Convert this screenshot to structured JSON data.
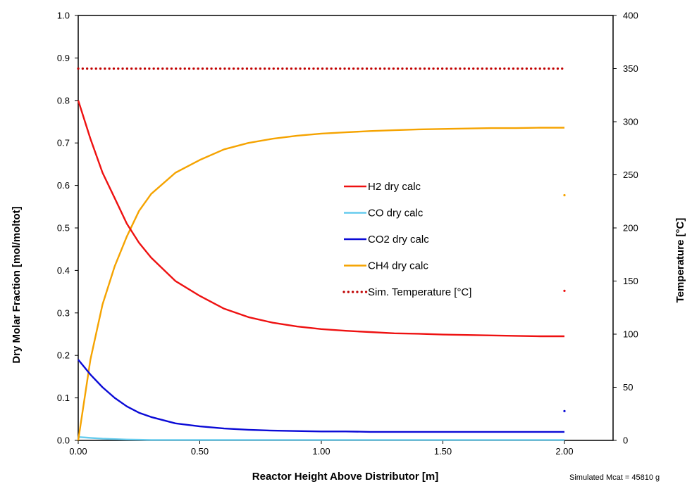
{
  "chart_data": {
    "type": "line",
    "xlabel": "Reactor Height Above Distributor [m]",
    "ylabel": "Dry Molar Fraction [mol/moltot]",
    "y2label": "Temperature [°C]",
    "xlim": [
      0,
      2.2
    ],
    "ylim": [
      0,
      1.0
    ],
    "y2lim": [
      0,
      400
    ],
    "xticks": [
      "0.00",
      "0.50",
      "1.00",
      "1.50",
      "2.00"
    ],
    "xtick_values": [
      0,
      0.5,
      1.0,
      1.5,
      2.0
    ],
    "yticks": [
      "0.0",
      "0.1",
      "0.2",
      "0.3",
      "0.4",
      "0.5",
      "0.6",
      "0.7",
      "0.8",
      "0.9",
      "1.0"
    ],
    "ytick_values": [
      0,
      0.1,
      0.2,
      0.3,
      0.4,
      0.5,
      0.6,
      0.7,
      0.8,
      0.9,
      1.0
    ],
    "y2ticks": [
      "0",
      "50",
      "100",
      "150",
      "200",
      "250",
      "300",
      "350",
      "400"
    ],
    "y2tick_values": [
      0,
      50,
      100,
      150,
      200,
      250,
      300,
      350,
      400
    ],
    "grid": false,
    "legend_position": "center",
    "x": [
      0,
      0.05,
      0.1,
      0.15,
      0.2,
      0.25,
      0.3,
      0.4,
      0.5,
      0.6,
      0.7,
      0.8,
      0.9,
      1.0,
      1.1,
      1.2,
      1.3,
      1.4,
      1.5,
      1.6,
      1.7,
      1.8,
      1.9,
      2.0
    ],
    "series": [
      {
        "name": "H2 dry calc",
        "color": "#ee1111",
        "style": "solid",
        "axis": "left",
        "values": [
          0.8,
          0.71,
          0.63,
          0.57,
          0.51,
          0.465,
          0.43,
          0.375,
          0.34,
          0.31,
          0.29,
          0.277,
          0.268,
          0.262,
          0.258,
          0.255,
          0.252,
          0.251,
          0.249,
          0.248,
          0.247,
          0.246,
          0.245,
          0.245
        ]
      },
      {
        "name": "CO dry calc",
        "color": "#66ccee",
        "style": "solid",
        "axis": "left",
        "values": [
          0.008,
          0.006,
          0.004,
          0.003,
          0.002,
          0.0015,
          0.001,
          0.001,
          0.001,
          0.001,
          0.001,
          0.001,
          0.001,
          0.001,
          0.001,
          0.001,
          0.001,
          0.001,
          0.001,
          0.001,
          0.001,
          0.001,
          0.001,
          0.001
        ]
      },
      {
        "name": "CO2 dry calc",
        "color": "#0a0ad6",
        "style": "solid",
        "axis": "left",
        "values": [
          0.19,
          0.155,
          0.125,
          0.1,
          0.08,
          0.065,
          0.055,
          0.04,
          0.033,
          0.028,
          0.025,
          0.023,
          0.022,
          0.021,
          0.021,
          0.02,
          0.02,
          0.02,
          0.02,
          0.02,
          0.02,
          0.02,
          0.02,
          0.02
        ]
      },
      {
        "name": "CH4 dry calc",
        "color": "#f5a300",
        "style": "solid",
        "axis": "left",
        "values": [
          0.0,
          0.19,
          0.32,
          0.41,
          0.48,
          0.54,
          0.58,
          0.63,
          0.66,
          0.685,
          0.7,
          0.71,
          0.717,
          0.722,
          0.725,
          0.728,
          0.73,
          0.732,
          0.733,
          0.734,
          0.735,
          0.735,
          0.736,
          0.736
        ]
      },
      {
        "name": "Sim. Temperature [°C]",
        "color": "#c00000",
        "style": "dotted",
        "axis": "right",
        "values": [
          350,
          350,
          350,
          350,
          350,
          350,
          350,
          350,
          350,
          350,
          350,
          350,
          350,
          350,
          350,
          350,
          350,
          350,
          350,
          350,
          350,
          350,
          350,
          350
        ]
      }
    ],
    "markers": [
      {
        "x": 2.0,
        "y": 0.577,
        "color": "#f5a300"
      },
      {
        "x": 2.0,
        "y": 0.352,
        "color": "#ee1111"
      },
      {
        "x": 2.0,
        "y": 0.069,
        "color": "#0a0ad6"
      }
    ],
    "note": "Simulated Mcat = 45810 g"
  }
}
